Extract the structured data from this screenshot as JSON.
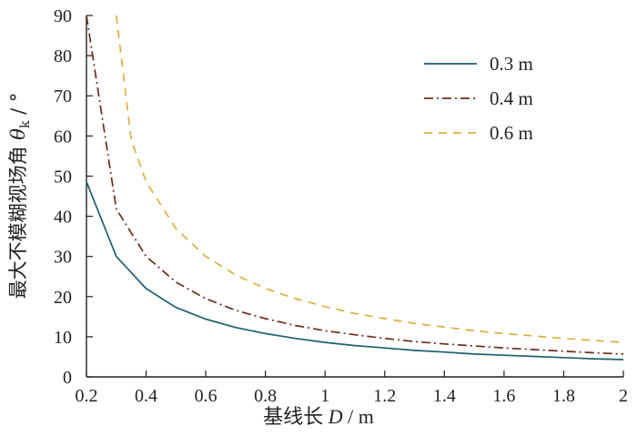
{
  "chart_data": {
    "type": "line",
    "title": "",
    "xlabel_text": "基线长 ",
    "xlabel_var": "D",
    "xlabel_unit": " / m",
    "ylabel_text": "最大不模糊视场角 ",
    "ylabel_var": "θ",
    "ylabel_sub": "k",
    "ylabel_unit": " / °",
    "xlim": [
      0.2,
      2.0
    ],
    "ylim": [
      0,
      90
    ],
    "xticks": [
      0.2,
      0.4,
      0.6,
      0.8,
      1.0,
      1.2,
      1.4,
      1.6,
      1.8,
      2.0
    ],
    "xtick_labels": [
      "0.2",
      "0.4",
      "0.6",
      "0.8",
      "1",
      "1.2",
      "1.4",
      "1.6",
      "1.8",
      "2"
    ],
    "yticks": [
      0,
      10,
      20,
      30,
      40,
      50,
      60,
      70,
      80,
      90
    ],
    "ytick_labels": [
      "0",
      "10",
      "20",
      "30",
      "40",
      "50",
      "60",
      "70",
      "80",
      "90"
    ],
    "legend_position": "top-right",
    "series": [
      {
        "name": "0.3 m",
        "color": "#1f5f6e",
        "dash": "solid",
        "x": [
          0.2,
          0.3,
          0.4,
          0.5,
          0.6,
          0.7,
          0.8,
          0.9,
          1.0,
          1.1,
          1.2,
          1.3,
          1.4,
          1.5,
          1.6,
          1.7,
          1.8,
          1.9,
          2.0
        ],
        "y": [
          48.6,
          30.0,
          22.0,
          17.3,
          14.4,
          12.3,
          10.8,
          9.6,
          8.6,
          7.8,
          7.2,
          6.6,
          6.2,
          5.7,
          5.4,
          5.1,
          4.8,
          4.5,
          4.3
        ]
      },
      {
        "name": "0.4 m",
        "color": "#6b2d1d",
        "dash": "dashdot",
        "x": [
          0.2,
          0.3,
          0.4,
          0.5,
          0.6,
          0.7,
          0.8,
          0.9,
          1.0,
          1.1,
          1.2,
          1.3,
          1.4,
          1.5,
          1.6,
          1.7,
          1.8,
          1.9,
          2.0
        ],
        "y": [
          90.0,
          41.8,
          30.0,
          23.6,
          19.5,
          16.6,
          14.5,
          12.8,
          11.5,
          10.5,
          9.6,
          8.8,
          8.2,
          7.7,
          7.2,
          6.8,
          6.4,
          6.0,
          5.7
        ]
      },
      {
        "name": "0.6 m",
        "color": "#d9b040",
        "dash": "dashed",
        "x": [
          0.3,
          0.35,
          0.4,
          0.5,
          0.6,
          0.7,
          0.8,
          0.9,
          1.0,
          1.1,
          1.2,
          1.3,
          1.4,
          1.5,
          1.6,
          1.7,
          1.8,
          1.9,
          2.0
        ],
        "y": [
          90.0,
          59.0,
          48.6,
          36.9,
          30.0,
          25.4,
          22.0,
          19.5,
          17.5,
          15.8,
          14.5,
          13.3,
          12.4,
          11.5,
          10.8,
          10.2,
          9.6,
          9.1,
          8.6
        ]
      }
    ]
  }
}
